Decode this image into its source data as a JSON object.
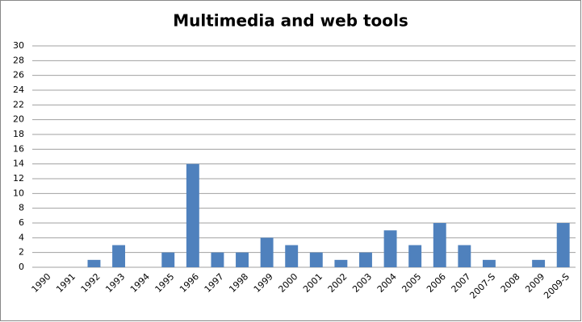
{
  "chart_data": {
    "type": "bar",
    "title": "Multimedia and web tools",
    "categories": [
      "1990",
      "1991",
      "1992",
      "1993",
      "1994",
      "1995",
      "1996",
      "1997",
      "1998",
      "1999",
      "2000",
      "2001",
      "2002",
      "2003",
      "2004",
      "2005",
      "2006",
      "2007",
      "2007-S",
      "2008",
      "2009",
      "2009-S"
    ],
    "values": [
      0,
      0,
      1,
      3,
      0,
      2,
      14,
      2,
      2,
      4,
      3,
      2,
      1,
      2,
      5,
      3,
      6,
      3,
      1,
      0,
      1,
      6
    ],
    "color": "#4f81bd",
    "ylim": [
      0,
      30
    ],
    "yticks": [
      0,
      2,
      4,
      6,
      8,
      10,
      12,
      14,
      16,
      18,
      20,
      22,
      24,
      26,
      28,
      30
    ],
    "grid": true
  }
}
